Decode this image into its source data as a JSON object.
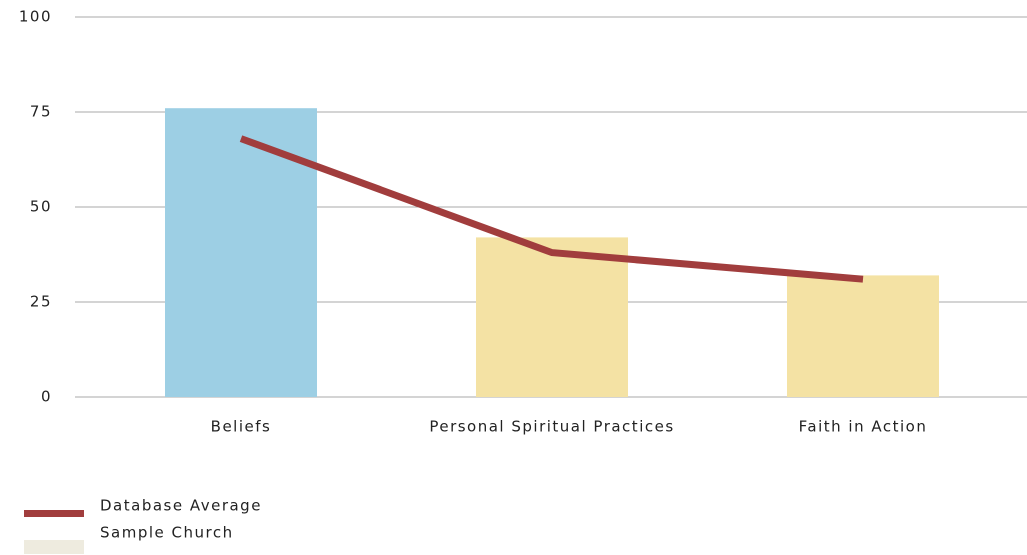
{
  "chart_data": {
    "type": "bar",
    "categories": [
      "Beliefs",
      "Personal Spiritual Practices",
      "Faith in Action"
    ],
    "series": [
      {
        "name": "Sample Church",
        "type": "bar",
        "color": "#eeebdf",
        "colors": [
          "#9dcfe4",
          "#f4e2a4",
          "#f4e2a4"
        ],
        "values": [
          76,
          42,
          32
        ]
      },
      {
        "name": "Database Average",
        "type": "line",
        "color": "#a13d3d",
        "values": [
          68,
          38,
          31
        ]
      }
    ],
    "ylim": [
      0,
      100
    ],
    "yticks": [
      0,
      25,
      50,
      75,
      100
    ],
    "grid": true
  }
}
